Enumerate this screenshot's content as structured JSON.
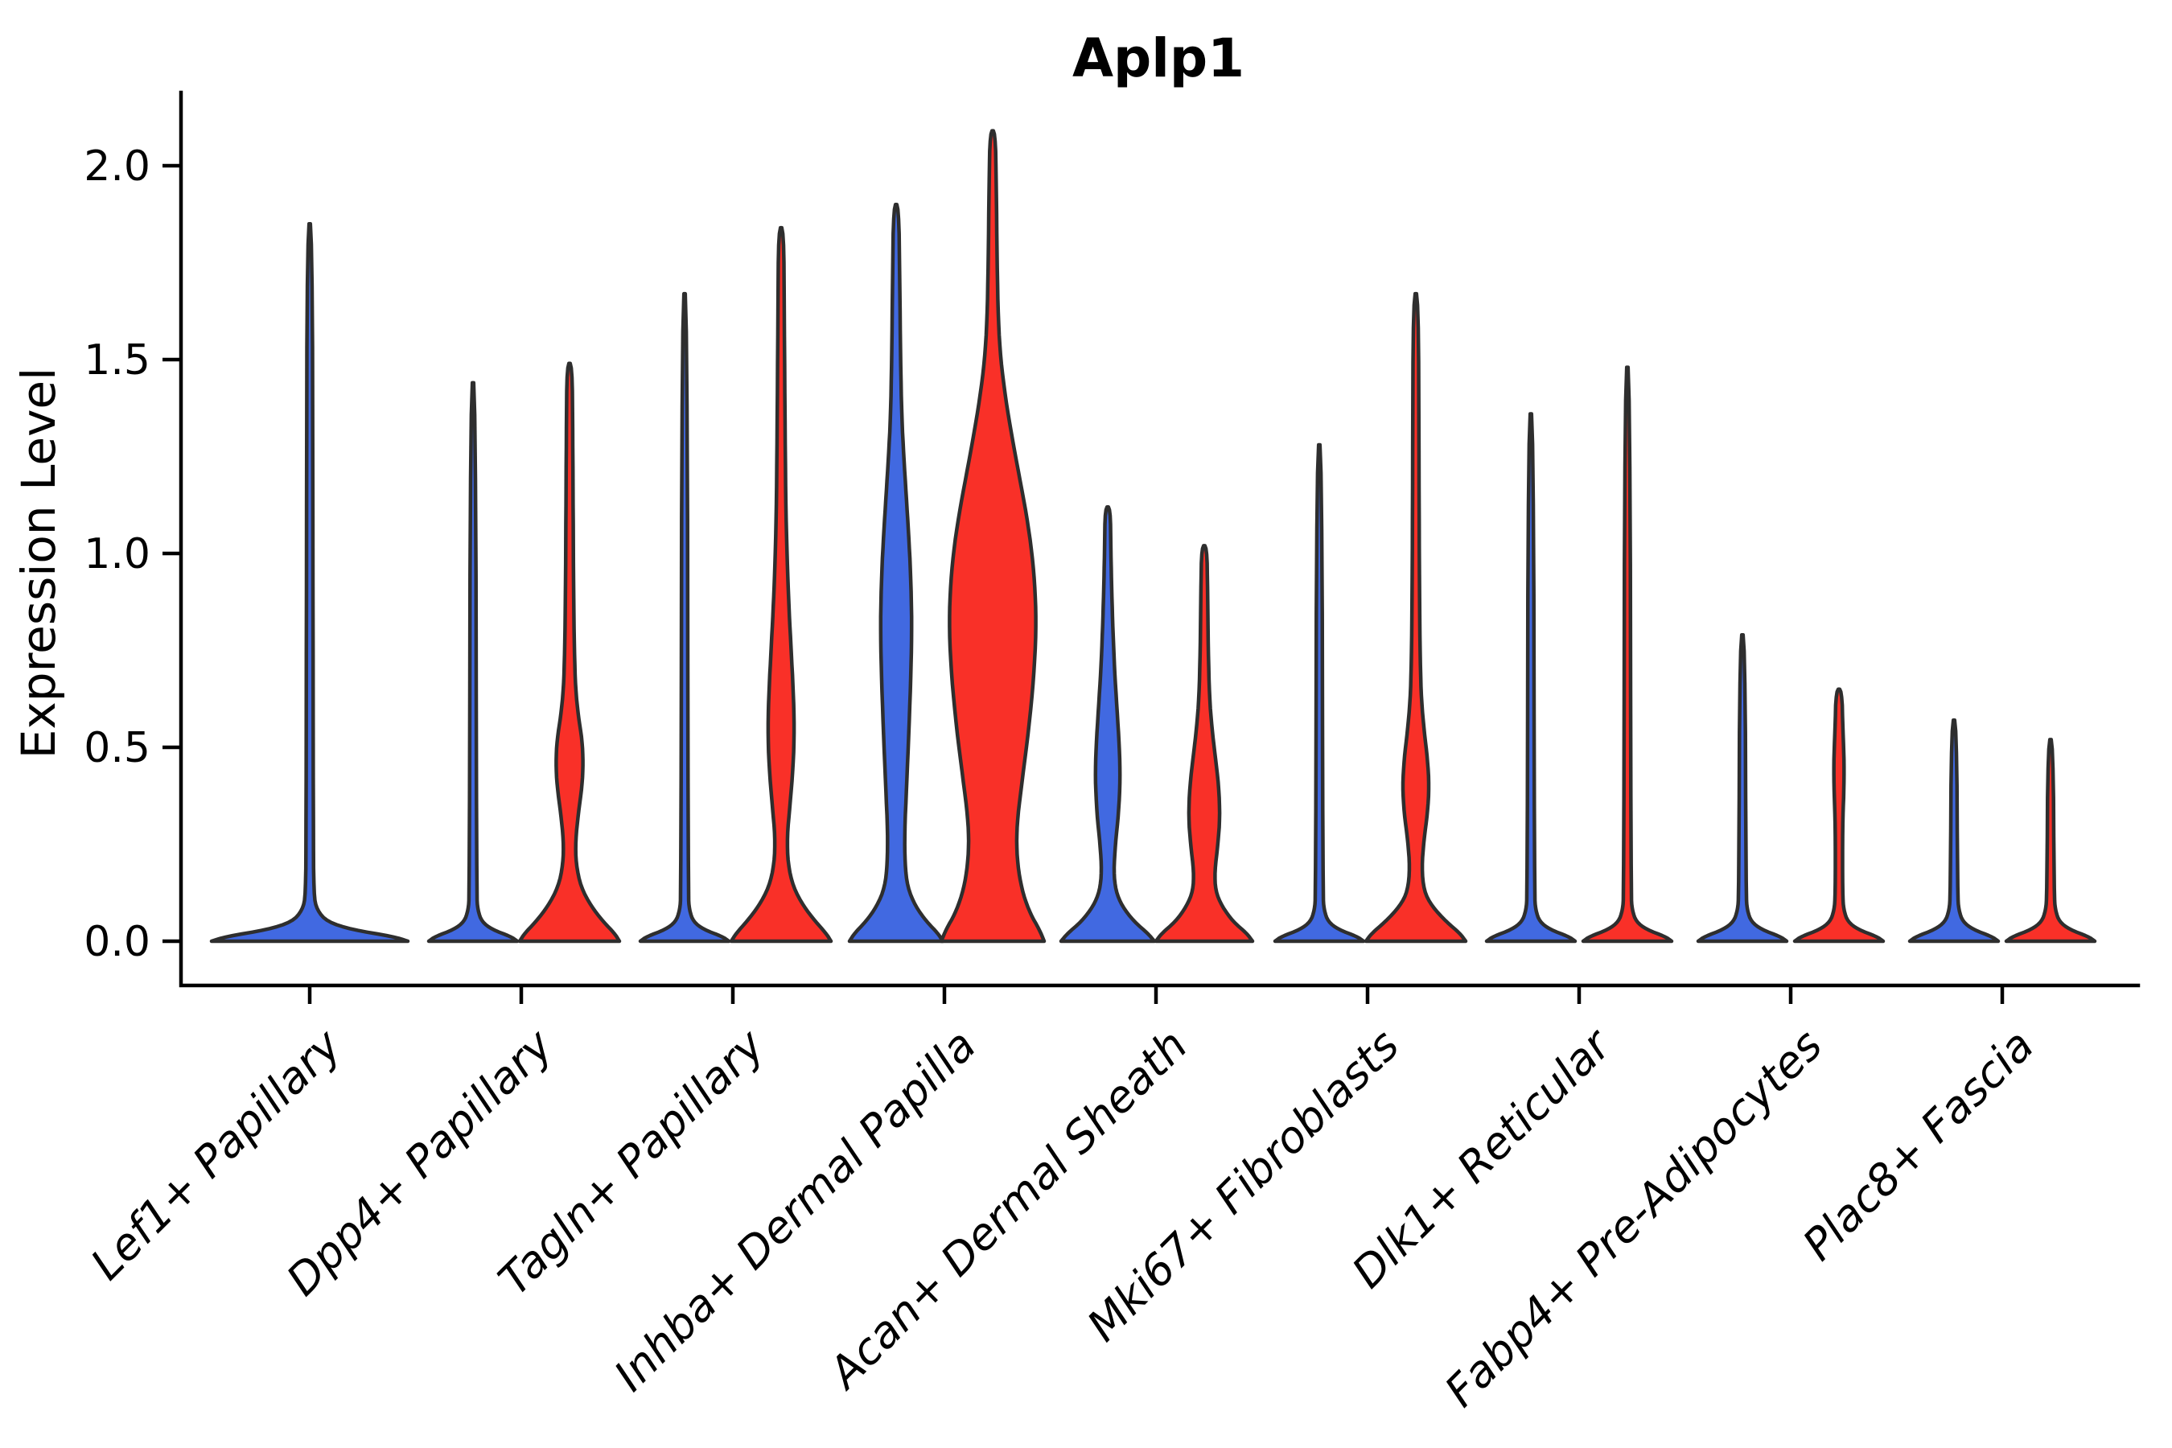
{
  "chart_data": {
    "type": "violin",
    "title": "Aplp1",
    "ylabel": "Expression Level",
    "xlabel": "",
    "ylim": [
      -0.12,
      2.25
    ],
    "grid": false,
    "legend": "none",
    "yticks": [
      {
        "value": 0.0,
        "label": "0.0"
      },
      {
        "value": 0.5,
        "label": "0.5"
      },
      {
        "value": 1.0,
        "label": "1.0"
      },
      {
        "value": 1.5,
        "label": "1.5"
      },
      {
        "value": 2.0,
        "label": "2.0"
      }
    ],
    "categories": [
      "Lef1+ Papillary",
      "Dpp4+ Papillary",
      "Tagln+ Papillary",
      "Inhba+ Dermal Papilla",
      "Acan+ Dermal Sheath",
      "Mki67+ Fibroblasts",
      "Dlk1+ Reticular",
      "Fabp4+ Pre-Adipocytes",
      "Plac8+ Fascia"
    ],
    "groups": [
      {
        "name": "left",
        "color": "#4169E1"
      },
      {
        "name": "right",
        "color": "#F93028"
      }
    ],
    "colors": {
      "blue": "#4169E1",
      "red": "#F93028",
      "outline": "#2E2E2E",
      "axis": "#000000"
    },
    "violins": [
      {
        "category": 0,
        "group": "single",
        "color": "#4169E1",
        "max": 1.85,
        "profile": [
          [
            0,
            122
          ],
          [
            0.012,
            104
          ],
          [
            0.03,
            52
          ],
          [
            0.05,
            22
          ],
          [
            0.08,
            9
          ],
          [
            0.12,
            5
          ],
          [
            0.3,
            4.5
          ],
          [
            1.0,
            4
          ],
          [
            1.85,
            3.2
          ]
        ]
      },
      {
        "category": 1,
        "group": "left",
        "color": "#4169E1",
        "max": 1.44,
        "profile": [
          [
            0,
            55
          ],
          [
            0.012,
            47
          ],
          [
            0.03,
            24
          ],
          [
            0.05,
            11
          ],
          [
            0.08,
            6
          ],
          [
            0.12,
            4.5
          ],
          [
            1.44,
            3.2
          ]
        ]
      },
      {
        "category": 1,
        "group": "right",
        "color": "#F93028",
        "max": 1.49,
        "profile": [
          [
            0,
            62
          ],
          [
            0.02,
            56
          ],
          [
            0.05,
            42
          ],
          [
            0.09,
            27
          ],
          [
            0.14,
            14
          ],
          [
            0.2,
            8
          ],
          [
            0.26,
            7.5
          ],
          [
            0.33,
            11
          ],
          [
            0.4,
            15.5
          ],
          [
            0.46,
            17
          ],
          [
            0.52,
            15.5
          ],
          [
            0.58,
            11
          ],
          [
            0.65,
            7.5
          ],
          [
            0.75,
            6
          ],
          [
            0.9,
            5
          ],
          [
            1.1,
            4.5
          ],
          [
            1.3,
            4
          ],
          [
            1.49,
            3.2
          ]
        ]
      },
      {
        "category": 2,
        "group": "left",
        "color": "#4169E1",
        "max": 1.67,
        "profile": [
          [
            0,
            55
          ],
          [
            0.012,
            47
          ],
          [
            0.03,
            24
          ],
          [
            0.05,
            11
          ],
          [
            0.08,
            6
          ],
          [
            0.12,
            4.5
          ],
          [
            1.67,
            3.2
          ]
        ]
      },
      {
        "category": 2,
        "group": "right",
        "color": "#F93028",
        "max": 1.84,
        "profile": [
          [
            0,
            62
          ],
          [
            0.02,
            56
          ],
          [
            0.05,
            43
          ],
          [
            0.09,
            28
          ],
          [
            0.14,
            15
          ],
          [
            0.2,
            8.5
          ],
          [
            0.27,
            7.5
          ],
          [
            0.35,
            11
          ],
          [
            0.45,
            15
          ],
          [
            0.55,
            16.5
          ],
          [
            0.65,
            15
          ],
          [
            0.75,
            12.5
          ],
          [
            0.85,
            10
          ],
          [
            0.95,
            8
          ],
          [
            1.1,
            6
          ],
          [
            1.3,
            5
          ],
          [
            1.6,
            4
          ],
          [
            1.84,
            3.2
          ]
        ]
      },
      {
        "category": 3,
        "group": "left",
        "color": "#4169E1",
        "max": 1.9,
        "profile": [
          [
            0,
            58
          ],
          [
            0.02,
            52
          ],
          [
            0.05,
            38
          ],
          [
            0.09,
            24
          ],
          [
            0.14,
            14
          ],
          [
            0.2,
            11
          ],
          [
            0.28,
            10.5
          ],
          [
            0.4,
            13
          ],
          [
            0.55,
            16
          ],
          [
            0.7,
            18.5
          ],
          [
            0.82,
            19.5
          ],
          [
            0.95,
            18
          ],
          [
            1.05,
            15.5
          ],
          [
            1.15,
            12.5
          ],
          [
            1.25,
            9.5
          ],
          [
            1.35,
            7
          ],
          [
            1.5,
            5.5
          ],
          [
            1.7,
            4.5
          ],
          [
            1.9,
            3.2
          ]
        ]
      },
      {
        "category": 3,
        "group": "right",
        "color": "#F93028",
        "max": 2.09,
        "profile": [
          [
            0,
            64
          ],
          [
            0.03,
            58
          ],
          [
            0.07,
            47
          ],
          [
            0.12,
            38
          ],
          [
            0.18,
            32
          ],
          [
            0.25,
            29.5
          ],
          [
            0.32,
            31
          ],
          [
            0.42,
            37
          ],
          [
            0.55,
            45
          ],
          [
            0.68,
            51
          ],
          [
            0.8,
            54
          ],
          [
            0.9,
            53
          ],
          [
            1.0,
            49
          ],
          [
            1.1,
            42
          ],
          [
            1.2,
            33
          ],
          [
            1.3,
            24
          ],
          [
            1.4,
            16
          ],
          [
            1.5,
            10
          ],
          [
            1.6,
            7
          ],
          [
            1.75,
            5.5
          ],
          [
            1.95,
            4.5
          ],
          [
            2.09,
            3.2
          ]
        ]
      },
      {
        "category": 4,
        "group": "left",
        "color": "#4169E1",
        "max": 1.12,
        "profile": [
          [
            0,
            58
          ],
          [
            0.02,
            50
          ],
          [
            0.05,
            33
          ],
          [
            0.09,
            18
          ],
          [
            0.13,
            10
          ],
          [
            0.18,
            7.5
          ],
          [
            0.25,
            9.5
          ],
          [
            0.33,
            13.5
          ],
          [
            0.42,
            15.5
          ],
          [
            0.5,
            14.5
          ],
          [
            0.6,
            11.5
          ],
          [
            0.7,
            8.5
          ],
          [
            0.8,
            6.5
          ],
          [
            0.9,
            5
          ],
          [
            1.0,
            4
          ],
          [
            1.12,
            3.2
          ]
        ]
      },
      {
        "category": 4,
        "group": "right",
        "color": "#F93028",
        "max": 1.02,
        "profile": [
          [
            0,
            60
          ],
          [
            0.02,
            53
          ],
          [
            0.05,
            36
          ],
          [
            0.09,
            22
          ],
          [
            0.13,
            14
          ],
          [
            0.18,
            13
          ],
          [
            0.25,
            17
          ],
          [
            0.32,
            19.5
          ],
          [
            0.4,
            18
          ],
          [
            0.48,
            13.5
          ],
          [
            0.55,
            9.5
          ],
          [
            0.63,
            6.5
          ],
          [
            0.75,
            5
          ],
          [
            0.9,
            4.2
          ],
          [
            1.02,
            3.2
          ]
        ]
      },
      {
        "category": 5,
        "group": "left",
        "color": "#4169E1",
        "max": 1.28,
        "profile": [
          [
            0,
            55
          ],
          [
            0.012,
            47
          ],
          [
            0.03,
            24
          ],
          [
            0.05,
            11
          ],
          [
            0.08,
            6
          ],
          [
            0.12,
            4.5
          ],
          [
            1.28,
            3.2
          ]
        ]
      },
      {
        "category": 5,
        "group": "right",
        "color": "#F93028",
        "max": 1.67,
        "profile": [
          [
            0,
            62
          ],
          [
            0.02,
            55
          ],
          [
            0.05,
            38
          ],
          [
            0.09,
            20
          ],
          [
            0.13,
            10
          ],
          [
            0.19,
            7.5
          ],
          [
            0.26,
            10
          ],
          [
            0.33,
            14.5
          ],
          [
            0.4,
            16.5
          ],
          [
            0.47,
            14.5
          ],
          [
            0.54,
            10.5
          ],
          [
            0.62,
            7
          ],
          [
            0.72,
            5.5
          ],
          [
            0.9,
            4.5
          ],
          [
            1.2,
            4
          ],
          [
            1.67,
            3.2
          ]
        ]
      },
      {
        "category": 6,
        "group": "left",
        "color": "#4169E1",
        "max": 1.36,
        "profile": [
          [
            0,
            55
          ],
          [
            0.012,
            47
          ],
          [
            0.03,
            24
          ],
          [
            0.05,
            11
          ],
          [
            0.08,
            6
          ],
          [
            0.12,
            4.5
          ],
          [
            1.36,
            3.2
          ]
        ]
      },
      {
        "category": 6,
        "group": "right",
        "color": "#F93028",
        "max": 1.48,
        "profile": [
          [
            0,
            55
          ],
          [
            0.012,
            47
          ],
          [
            0.03,
            24
          ],
          [
            0.05,
            11
          ],
          [
            0.08,
            6
          ],
          [
            0.12,
            4.5
          ],
          [
            1.48,
            3.2
          ]
        ]
      },
      {
        "category": 7,
        "group": "left",
        "color": "#4169E1",
        "max": 0.79,
        "profile": [
          [
            0,
            55
          ],
          [
            0.012,
            47
          ],
          [
            0.03,
            24
          ],
          [
            0.05,
            11
          ],
          [
            0.08,
            6
          ],
          [
            0.12,
            4.5
          ],
          [
            0.79,
            3.2
          ]
        ]
      },
      {
        "category": 7,
        "group": "right",
        "color": "#F93028",
        "max": 0.65,
        "profile": [
          [
            0,
            55
          ],
          [
            0.012,
            47
          ],
          [
            0.03,
            24
          ],
          [
            0.05,
            11
          ],
          [
            0.08,
            6
          ],
          [
            0.12,
            4.5
          ],
          [
            0.3,
            4.5
          ],
          [
            0.38,
            6
          ],
          [
            0.46,
            6.5
          ],
          [
            0.54,
            5
          ],
          [
            0.65,
            3.5
          ]
        ]
      },
      {
        "category": 8,
        "group": "left",
        "color": "#4169E1",
        "max": 0.57,
        "profile": [
          [
            0,
            55
          ],
          [
            0.012,
            47
          ],
          [
            0.03,
            24
          ],
          [
            0.05,
            11
          ],
          [
            0.08,
            6
          ],
          [
            0.12,
            4.5
          ],
          [
            0.57,
            3.2
          ]
        ]
      },
      {
        "category": 8,
        "group": "right",
        "color": "#F93028",
        "max": 0.52,
        "profile": [
          [
            0,
            55
          ],
          [
            0.012,
            47
          ],
          [
            0.03,
            24
          ],
          [
            0.05,
            11
          ],
          [
            0.08,
            6
          ],
          [
            0.12,
            4.5
          ],
          [
            0.52,
            3.2
          ]
        ]
      }
    ]
  }
}
